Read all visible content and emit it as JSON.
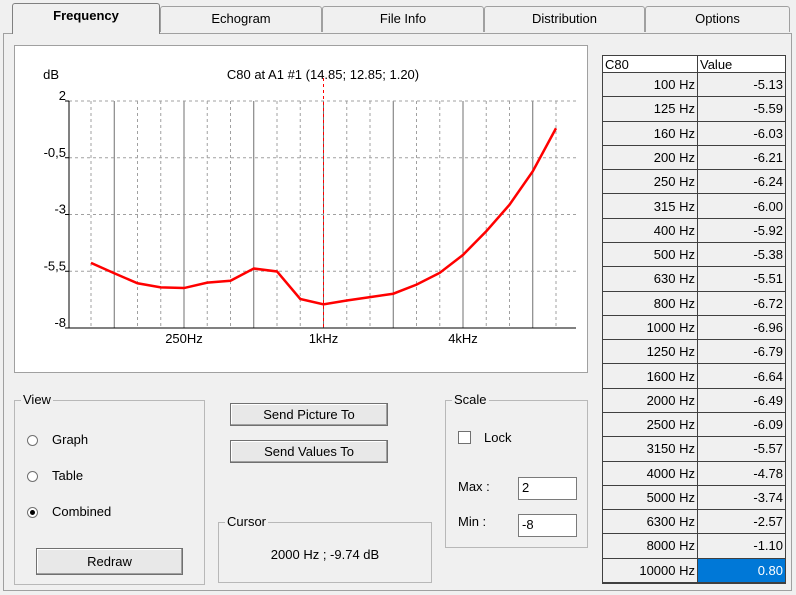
{
  "tabs": [
    "Frequency",
    "Echogram",
    "File Info",
    "Distribution",
    "Options"
  ],
  "active_tab": 0,
  "chart_data": {
    "type": "line",
    "title": "C80 at A1 #1  (14.85; 12.85; 1.20)",
    "y_label": "dB",
    "categories": [
      null,
      null,
      null,
      null,
      "250Hz",
      null,
      null,
      null,
      null,
      null,
      "1kHz",
      null,
      null,
      null,
      null,
      null,
      "4kHz",
      null,
      null,
      null,
      null
    ],
    "values": [
      -5.13,
      -5.59,
      -6.03,
      -6.21,
      -6.24,
      -6.0,
      -5.92,
      -5.38,
      -5.51,
      -6.72,
      -6.96,
      -6.79,
      -6.64,
      -6.49,
      -6.09,
      -5.57,
      -4.78,
      -3.74,
      -2.57,
      -1.1,
      0.8
    ],
    "color": "#ff0000",
    "ylim": [
      -8,
      2
    ],
    "yticks": [
      {
        "value": 2,
        "label": "2"
      },
      {
        "value": -0.5,
        "label": "-0,5"
      },
      -3,
      {
        "value": -5.5,
        "label": "-5,5"
      },
      -8
    ],
    "grid": true
  },
  "view": {
    "title": "View",
    "options": [
      "Graph",
      "Table",
      "Combined"
    ],
    "selected": 2
  },
  "buttons": {
    "redraw": "Redraw",
    "send_picture": "Send Picture To",
    "send_values": "Send Values To"
  },
  "cursor": {
    "title": "Cursor",
    "text": "2000 Hz ; -9.74 dB"
  },
  "scale": {
    "title": "Scale",
    "lock": "Lock",
    "locked": false,
    "max_label": "Max :",
    "max": "2",
    "min_label": "Min :",
    "min": "-8"
  },
  "table": {
    "header": [
      "C80",
      "Value"
    ],
    "rows": [
      [
        "100 Hz",
        "-5.13"
      ],
      [
        "125 Hz",
        "-5.59"
      ],
      [
        "160 Hz",
        "-6.03"
      ],
      [
        "200 Hz",
        "-6.21"
      ],
      [
        "250 Hz",
        "-6.24"
      ],
      [
        "315 Hz",
        "-6.00"
      ],
      [
        "400 Hz",
        "-5.92"
      ],
      [
        "500 Hz",
        "-5.38"
      ],
      [
        "630 Hz",
        "-5.51"
      ],
      [
        "800 Hz",
        "-6.72"
      ],
      [
        "1000 Hz",
        "-6.96"
      ],
      [
        "1250 Hz",
        "-6.79"
      ],
      [
        "1600 Hz",
        "-6.64"
      ],
      [
        "2000 Hz",
        "-6.49"
      ],
      [
        "2500 Hz",
        "-6.09"
      ],
      [
        "3150 Hz",
        "-5.57"
      ],
      [
        "4000 Hz",
        "-4.78"
      ],
      [
        "5000 Hz",
        "-3.74"
      ],
      [
        "6300 Hz",
        "-2.57"
      ],
      [
        "8000 Hz",
        "-1.10"
      ],
      [
        "10000 Hz",
        "0.80"
      ]
    ],
    "selected_row": 20
  }
}
